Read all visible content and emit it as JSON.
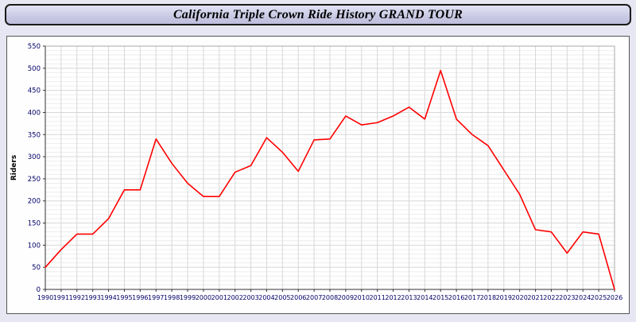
{
  "header": {
    "title": "California Triple Crown Ride History GRAND TOUR"
  },
  "chart_data": {
    "type": "line",
    "title": "California Triple Crown Ride History GRAND TOUR",
    "xlabel": "",
    "ylabel": "Riders",
    "ylim": [
      0,
      550
    ],
    "y_major_step": 50,
    "y_minor_step": 10,
    "grid": true,
    "legend": "none",
    "line_color": "#ff0000",
    "x": [
      1990,
      1991,
      1992,
      1993,
      1994,
      1995,
      1996,
      1997,
      1998,
      1999,
      2000,
      2001,
      2002,
      2003,
      2004,
      2005,
      2006,
      2007,
      2008,
      2009,
      2010,
      2011,
      2012,
      2013,
      2014,
      2015,
      2016,
      2017,
      2018,
      2019,
      2020,
      2021,
      2022,
      2023,
      2024,
      2025,
      2026
    ],
    "values": [
      50,
      90,
      125,
      125,
      160,
      225,
      225,
      340,
      285,
      240,
      210,
      210,
      265,
      280,
      343,
      310,
      267,
      338,
      340,
      392,
      372,
      377,
      392,
      412,
      385,
      495,
      385,
      350,
      325,
      270,
      215,
      135,
      130,
      82,
      130,
      125,
      0
    ]
  },
  "colors": {
    "background": "#e7e7f3",
    "title_bar": "#c9c9e4",
    "line": "#ff0000",
    "tick_label": "#00006a"
  }
}
